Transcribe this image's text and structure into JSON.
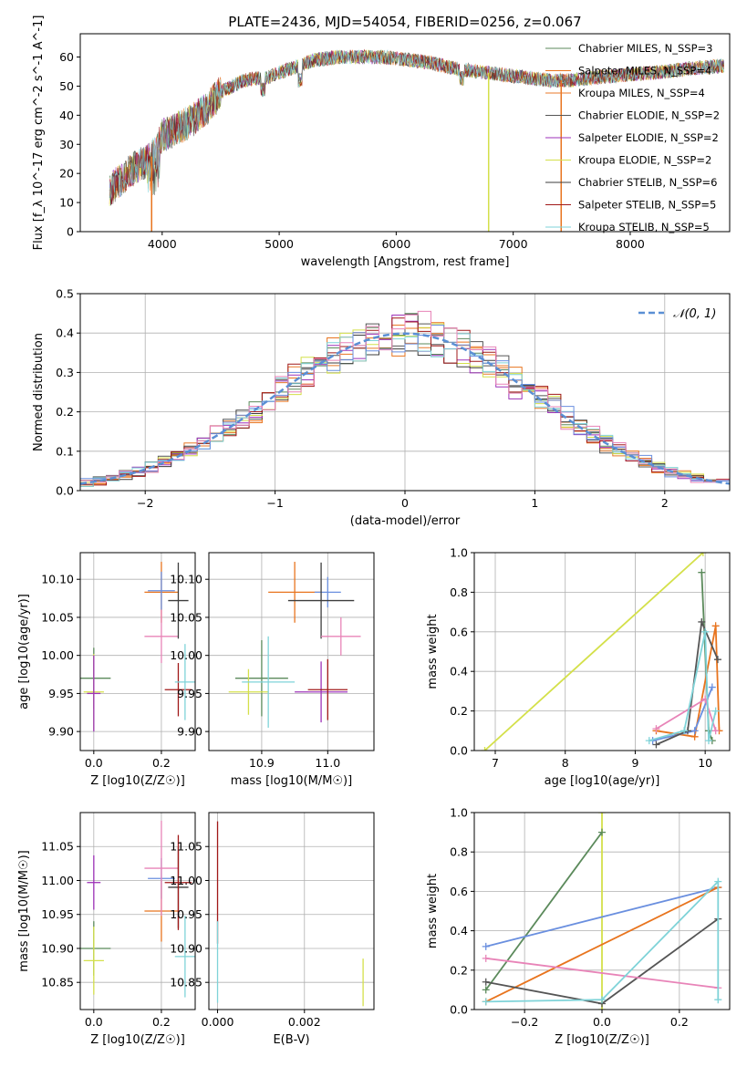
{
  "colors": [
    "#5b8a5b",
    "#e8741e",
    "#e87a2a",
    "#555555",
    "#9d32b8",
    "#d4e04a",
    "#3d3d3d",
    "#a01818",
    "#7fd3d8",
    "#6a8fdf",
    "#e884b8"
  ],
  "chart_data": [
    {
      "id": "spectrum",
      "type": "line",
      "title": "PLATE=2436, MJD=54054, FIBERID=0256, z=0.067",
      "xlabel": "wavelength [Angstrom, rest frame]",
      "ylabel": "Flux [f_λ 10^-17 erg cm^-2 s^-1 A^-1]",
      "xlim": [
        3300,
        8850
      ],
      "ylim": [
        0,
        68
      ],
      "xticks": [
        4000,
        5000,
        6000,
        7000,
        8000
      ],
      "yticks": [
        0,
        10,
        20,
        30,
        40,
        50,
        60
      ],
      "envelope": {
        "x": [
          3550,
          3700,
          3850,
          3950,
          4000,
          4100,
          4250,
          4400,
          4500,
          4700,
          4900,
          5100,
          5300,
          5500,
          5700,
          5900,
          6100,
          6300,
          6500,
          6700,
          6900,
          7100,
          7300,
          7500,
          7700,
          8000,
          8300,
          8500,
          8800
        ],
        "y": [
          14,
          20,
          24,
          27,
          33,
          35,
          38,
          43,
          48,
          52,
          53,
          56,
          59,
          60,
          60,
          60,
          59,
          58,
          56,
          55,
          54,
          53,
          52,
          52,
          53,
          54,
          55,
          56,
          57
        ]
      },
      "series": [
        {
          "name": "Chabrier MILES, N_SSP=3",
          "color": "#5b8a5b"
        },
        {
          "name": "Salpeter MILES, N_SSP=4",
          "color": "#e8741e"
        },
        {
          "name": "Kroupa MILES, N_SSP=4",
          "color": "#e87a2a"
        },
        {
          "name": "Chabrier ELODIE, N_SSP=2",
          "color": "#555555"
        },
        {
          "name": "Salpeter ELODIE, N_SSP=2",
          "color": "#9d32b8"
        },
        {
          "name": "Kroupa ELODIE, N_SSP=2",
          "color": "#d4e04a"
        },
        {
          "name": "Chabrier STELIB, N_SSP=6",
          "color": "#3d3d3d"
        },
        {
          "name": "Salpeter STELIB, N_SSP=5",
          "color": "#a01818"
        },
        {
          "name": "Kroupa STELIB, N_SSP=5",
          "color": "#7fd3d8"
        }
      ],
      "legend": "upper-right",
      "grid": false
    },
    {
      "id": "residuals",
      "type": "histogram",
      "xlabel": "(data-model)/error",
      "ylabel": "Normed distribution",
      "xlim": [
        -2.5,
        2.5
      ],
      "ylim": [
        0,
        0.5
      ],
      "xticks": [
        -2,
        -1,
        0,
        1,
        2
      ],
      "yticks": [
        0.0,
        0.1,
        0.2,
        0.3,
        0.4,
        0.5
      ],
      "reference": {
        "name": "𝒩(0, 1)",
        "mean": 0,
        "sigma": 1,
        "color": "#5a8fd4"
      },
      "legend": "upper-right",
      "grid": true
    },
    {
      "id": "age_vs_Z",
      "type": "errorbar",
      "xlabel": "Z [log10(Z/Z☉)]",
      "ylabel": "age  [log10(age/yr)]",
      "xlim": [
        -0.04,
        0.3
      ],
      "ylim": [
        9.875,
        10.135
      ],
      "xticks": [
        0.0,
        0.2
      ],
      "yticks": [
        9.9,
        9.95,
        10.0,
        10.05,
        10.1
      ],
      "points": [
        {
          "x": 0.0,
          "y": 9.97,
          "xerr": 0.05,
          "yerr": 0.04,
          "color": "#5b8a5b"
        },
        {
          "x": 0.0,
          "y": 9.952,
          "xerr": 0.03,
          "yerr": 0.05,
          "color": "#d4e04a"
        },
        {
          "x": 0.0,
          "y": 9.95,
          "xerr": 0.02,
          "yerr": 0.05,
          "color": "#9d32b8"
        },
        {
          "x": 0.2,
          "y": 10.083,
          "xerr": 0.05,
          "yerr": 0.04,
          "color": "#e8741e"
        },
        {
          "x": 0.2,
          "y": 10.085,
          "xerr": 0.04,
          "yerr": 0.025,
          "color": "#6a8fdf"
        },
        {
          "x": 0.2,
          "y": 10.025,
          "xerr": 0.05,
          "yerr": 0.035,
          "color": "#e884b8"
        },
        {
          "x": 0.25,
          "y": 10.072,
          "xerr": 0.03,
          "yerr": 0.05,
          "color": "#3d3d3d"
        },
        {
          "x": 0.25,
          "y": 9.955,
          "xerr": 0.04,
          "yerr": 0.035,
          "color": "#a01818"
        },
        {
          "x": 0.27,
          "y": 9.965,
          "xerr": 0.03,
          "yerr": 0.05,
          "color": "#7fd3d8"
        }
      ],
      "grid": true
    },
    {
      "id": "age_vs_mass",
      "type": "errorbar",
      "xlabel": "mass [log10(M/M☉)]",
      "xlim": [
        10.82,
        11.07
      ],
      "ylim": [
        9.875,
        10.135
      ],
      "xticks": [
        10.9,
        11.0
      ],
      "yticks": [
        9.9,
        9.95,
        10.0,
        10.05,
        10.1
      ],
      "points": [
        {
          "x": 10.9,
          "y": 9.97,
          "xerr": 0.04,
          "yerr": 0.05,
          "color": "#5b8a5b"
        },
        {
          "x": 10.88,
          "y": 9.952,
          "xerr": 0.03,
          "yerr": 0.03,
          "color": "#d4e04a"
        },
        {
          "x": 10.91,
          "y": 9.965,
          "xerr": 0.04,
          "yerr": 0.06,
          "color": "#7fd3d8"
        },
        {
          "x": 10.99,
          "y": 9.952,
          "xerr": 0.04,
          "yerr": 0.04,
          "color": "#9d32b8"
        },
        {
          "x": 10.95,
          "y": 10.083,
          "xerr": 0.04,
          "yerr": 0.04,
          "color": "#e8741e"
        },
        {
          "x": 11.0,
          "y": 10.083,
          "xerr": 0.02,
          "yerr": 0.02,
          "color": "#6a8fdf"
        },
        {
          "x": 10.99,
          "y": 10.072,
          "xerr": 0.05,
          "yerr": 0.05,
          "color": "#3d3d3d"
        },
        {
          "x": 11.02,
          "y": 10.025,
          "xerr": 0.03,
          "yerr": 0.025,
          "color": "#e884b8"
        },
        {
          "x": 11.0,
          "y": 9.955,
          "xerr": 0.03,
          "yerr": 0.04,
          "color": "#a01818"
        }
      ],
      "grid": true
    },
    {
      "id": "weight_vs_age",
      "type": "line",
      "xlabel": "age  [log10(age/yr)]",
      "ylabel": "mass weight",
      "xlim": [
        6.7,
        10.35
      ],
      "ylim": [
        0,
        1
      ],
      "xticks": [
        7,
        8,
        9,
        10
      ],
      "yticks": [
        0.0,
        0.2,
        0.4,
        0.6,
        0.8,
        1.0
      ],
      "series": [
        {
          "color": "#d4e04a",
          "x": [
            6.85,
            9.97
          ],
          "y": [
            0.0,
            1.0
          ]
        },
        {
          "color": "#5b8a5b",
          "x": [
            9.95,
            10.05,
            10.1
          ],
          "y": [
            0.9,
            0.1,
            0.05
          ]
        },
        {
          "color": "#e8741e",
          "x": [
            9.3,
            9.85,
            10.15,
            10.2
          ],
          "y": [
            0.1,
            0.07,
            0.63,
            0.1
          ]
        },
        {
          "color": "#6a8fdf",
          "x": [
            9.25,
            9.85,
            10.1
          ],
          "y": [
            0.05,
            0.1,
            0.32
          ]
        },
        {
          "color": "#555555",
          "x": [
            9.3,
            9.75,
            9.95,
            10.18
          ],
          "y": [
            0.03,
            0.1,
            0.65,
            0.46
          ]
        },
        {
          "color": "#e884b8",
          "x": [
            9.3,
            10.0,
            10.15
          ],
          "y": [
            0.11,
            0.26,
            0.1
          ]
        },
        {
          "color": "#7fd3d8",
          "x": [
            9.2,
            9.7,
            10.0,
            10.05,
            10.15
          ],
          "y": [
            0.05,
            0.1,
            0.6,
            0.05,
            0.2
          ]
        }
      ],
      "grid": true
    },
    {
      "id": "mass_vs_Z",
      "type": "errorbar",
      "xlabel": "Z [log10(Z/Z☉)]",
      "ylabel": "mass [log10(M/M☉)]",
      "xlim": [
        -0.04,
        0.3
      ],
      "ylim": [
        10.81,
        11.1
      ],
      "xticks": [
        0.0,
        0.2
      ],
      "yticks": [
        10.85,
        10.9,
        10.95,
        11.0,
        11.05
      ],
      "points": [
        {
          "x": 0.0,
          "y": 10.9,
          "xerr": 0.05,
          "yerr": 0.04,
          "color": "#5b8a5b"
        },
        {
          "x": 0.0,
          "y": 10.882,
          "xerr": 0.03,
          "yerr": 0.05,
          "color": "#d4e04a"
        },
        {
          "x": 0.0,
          "y": 10.997,
          "xerr": 0.02,
          "yerr": 0.04,
          "color": "#9d32b8"
        },
        {
          "x": 0.2,
          "y": 10.955,
          "xerr": 0.05,
          "yerr": 0.045,
          "color": "#e8741e"
        },
        {
          "x": 0.2,
          "y": 11.003,
          "xerr": 0.04,
          "yerr": 0.03,
          "color": "#6a8fdf"
        },
        {
          "x": 0.2,
          "y": 11.018,
          "xerr": 0.05,
          "yerr": 0.07,
          "color": "#e884b8"
        },
        {
          "x": 0.25,
          "y": 10.99,
          "xerr": 0.03,
          "yerr": 0.06,
          "color": "#3d3d3d"
        },
        {
          "x": 0.25,
          "y": 10.997,
          "xerr": 0.04,
          "yerr": 0.07,
          "color": "#a01818"
        },
        {
          "x": 0.27,
          "y": 10.888,
          "xerr": 0.03,
          "yerr": 0.06,
          "color": "#7fd3d8"
        }
      ],
      "grid": true
    },
    {
      "id": "mass_vs_ebv",
      "type": "errorbar",
      "xlabel": "E(B-V)",
      "xlim": [
        -0.0002,
        0.0036
      ],
      "ylim": [
        10.81,
        11.1
      ],
      "xticks": [
        0.0,
        0.002
      ],
      "yticks": [
        10.85,
        10.9,
        10.95,
        11.0,
        11.05
      ],
      "points": [
        {
          "x": 0.0,
          "y": 10.997,
          "xerr": 0,
          "yerr": 0.09,
          "color": "#a01818"
        },
        {
          "x": 0.0,
          "y": 10.88,
          "xerr": 0,
          "yerr": 0.06,
          "color": "#7fd3d8"
        },
        {
          "x": 0.00335,
          "y": 10.85,
          "xerr": 0,
          "yerr": 0.035,
          "color": "#d4e04a"
        }
      ],
      "grid": true
    },
    {
      "id": "weight_vs_Z",
      "type": "line",
      "xlabel": "Z [log10(Z/Z☉)]",
      "ylabel": "mass weight",
      "xlim": [
        -0.33,
        0.33
      ],
      "ylim": [
        0,
        1
      ],
      "xticks": [
        -0.2,
        0.0,
        0.2
      ],
      "yticks": [
        0.0,
        0.2,
        0.4,
        0.6,
        0.8,
        1.0
      ],
      "series": [
        {
          "color": "#d4e04a",
          "x": [
            0.0,
            0.0
          ],
          "y": [
            0.0,
            1.0
          ]
        },
        {
          "color": "#5b8a5b",
          "x": [
            -0.3,
            0.0
          ],
          "y": [
            0.1,
            0.9
          ]
        },
        {
          "color": "#6a8fdf",
          "x": [
            -0.3,
            0.3
          ],
          "y": [
            0.32,
            0.62
          ]
        },
        {
          "color": "#e8741e",
          "x": [
            -0.3,
            0.3
          ],
          "y": [
            0.04,
            0.62
          ]
        },
        {
          "color": "#555555",
          "x": [
            -0.3,
            0.0,
            0.3
          ],
          "y": [
            0.14,
            0.03,
            0.46
          ]
        },
        {
          "color": "#e884b8",
          "x": [
            -0.3,
            0.3
          ],
          "y": [
            0.26,
            0.11
          ]
        },
        {
          "color": "#7fd3d8",
          "x": [
            -0.3,
            0.0,
            0.3,
            0.3
          ],
          "y": [
            0.04,
            0.05,
            0.65,
            0.05
          ]
        }
      ],
      "grid": true
    }
  ]
}
